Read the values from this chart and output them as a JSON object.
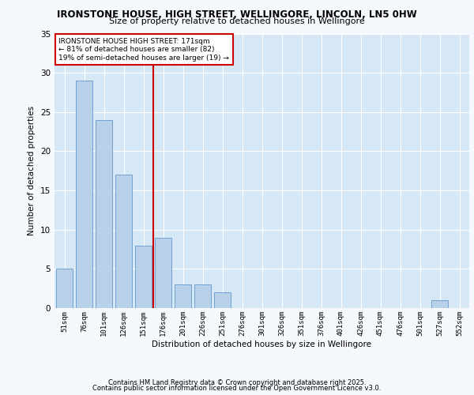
{
  "title1": "IRONSTONE HOUSE, HIGH STREET, WELLINGORE, LINCOLN, LN5 0HW",
  "title2": "Size of property relative to detached houses in Wellingore",
  "xlabel": "Distribution of detached houses by size in Wellingore",
  "ylabel": "Number of detached properties",
  "categories": [
    "51sqm",
    "76sqm",
    "101sqm",
    "126sqm",
    "151sqm",
    "176sqm",
    "201sqm",
    "226sqm",
    "251sqm",
    "276sqm",
    "301sqm",
    "326sqm",
    "351sqm",
    "376sqm",
    "401sqm",
    "426sqm",
    "451sqm",
    "476sqm",
    "501sqm",
    "527sqm",
    "552sqm"
  ],
  "values": [
    5,
    29,
    24,
    17,
    8,
    9,
    3,
    3,
    2,
    0,
    0,
    0,
    0,
    0,
    0,
    0,
    0,
    0,
    0,
    1,
    0
  ],
  "bar_color": "#b8d0e8",
  "bar_edge_color": "#6699cc",
  "vline_color": "#cc0000",
  "annotation_text": "IRONSTONE HOUSE HIGH STREET: 171sqm\n← 81% of detached houses are smaller (82)\n19% of semi-detached houses are larger (19) →",
  "annotation_box_color": "#ffffff",
  "annotation_box_edge_color": "#cc0000",
  "ylim": [
    0,
    35
  ],
  "yticks": [
    0,
    5,
    10,
    15,
    20,
    25,
    30,
    35
  ],
  "background_color": "#d6e8f5",
  "grid_color": "#ffffff",
  "fig_background": "#f5f8fc",
  "footer1": "Contains HM Land Registry data © Crown copyright and database right 2025.",
  "footer2": "Contains public sector information licensed under the Open Government Licence v3.0.",
  "vline_index": 4.5
}
